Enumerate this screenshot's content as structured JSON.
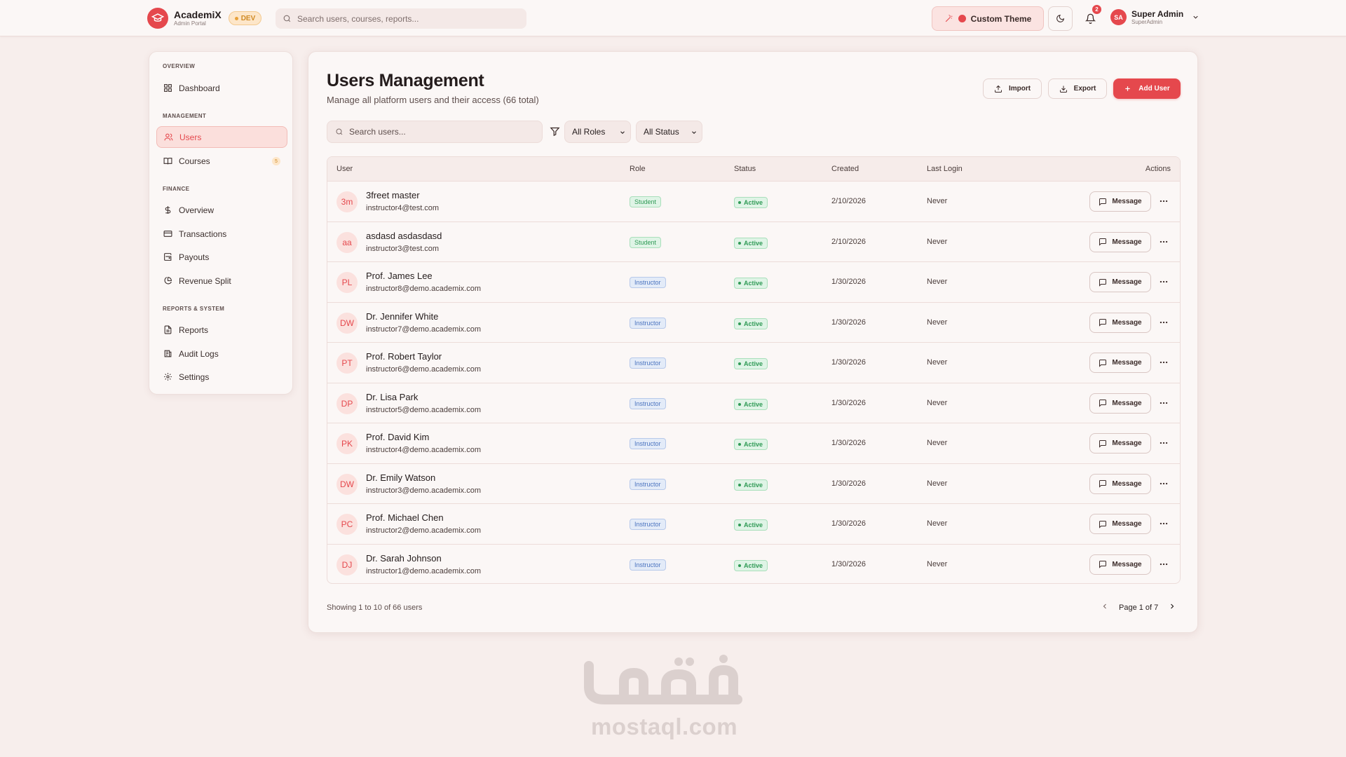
{
  "header": {
    "brand_name": "AcademiX",
    "brand_sub": "Admin Portal",
    "env_badge": "DEV",
    "search_placeholder": "Search users, courses, reports...",
    "theme_button": "Custom Theme",
    "notifications_count": "2",
    "user_initials": "SA",
    "user_name": "Super Admin",
    "user_role": "SuperAdmin"
  },
  "sidebar": {
    "sections": [
      {
        "title": "OVERVIEW",
        "items": [
          {
            "label": "Dashboard",
            "icon": "dashboard-icon"
          }
        ]
      },
      {
        "title": "MANAGEMENT",
        "items": [
          {
            "label": "Users",
            "icon": "users-icon",
            "active": true
          },
          {
            "label": "Courses",
            "icon": "book-icon",
            "badge": "5"
          }
        ]
      },
      {
        "title": "FINANCE",
        "items": [
          {
            "label": "Overview",
            "icon": "dollar-icon"
          },
          {
            "label": "Transactions",
            "icon": "card-icon"
          },
          {
            "label": "Payouts",
            "icon": "wallet-icon"
          },
          {
            "label": "Revenue Split",
            "icon": "pie-icon"
          }
        ]
      },
      {
        "title": "REPORTS & SYSTEM",
        "items": [
          {
            "label": "Reports",
            "icon": "file-icon"
          },
          {
            "label": "Audit Logs",
            "icon": "log-icon"
          },
          {
            "label": "Settings",
            "icon": "gear-icon"
          }
        ]
      }
    ]
  },
  "page": {
    "title": "Users Management",
    "subtitle": "Manage all platform users and their access (66 total)",
    "import_label": "Import",
    "export_label": "Export",
    "add_label": "Add User",
    "search_placeholder": "Search users...",
    "role_filter": "All Roles",
    "status_filter": "All Status"
  },
  "table": {
    "columns": [
      "User",
      "Role",
      "Status",
      "Created",
      "Last Login",
      "Actions"
    ],
    "message_label": "Message",
    "rows": [
      {
        "initials": "3m",
        "name": "3freet master",
        "email": "instructor4@test.com",
        "role": "Student",
        "status": "Active",
        "created": "2/10/2026",
        "last_login": "Never"
      },
      {
        "initials": "aa",
        "name": "asdasd asdasdasd",
        "email": "instructor3@test.com",
        "role": "Student",
        "status": "Active",
        "created": "2/10/2026",
        "last_login": "Never"
      },
      {
        "initials": "PL",
        "name": "Prof. James Lee",
        "email": "instructor8@demo.academix.com",
        "role": "Instructor",
        "status": "Active",
        "created": "1/30/2026",
        "last_login": "Never"
      },
      {
        "initials": "DW",
        "name": "Dr. Jennifer White",
        "email": "instructor7@demo.academix.com",
        "role": "Instructor",
        "status": "Active",
        "created": "1/30/2026",
        "last_login": "Never"
      },
      {
        "initials": "PT",
        "name": "Prof. Robert Taylor",
        "email": "instructor6@demo.academix.com",
        "role": "Instructor",
        "status": "Active",
        "created": "1/30/2026",
        "last_login": "Never"
      },
      {
        "initials": "DP",
        "name": "Dr. Lisa Park",
        "email": "instructor5@demo.academix.com",
        "role": "Instructor",
        "status": "Active",
        "created": "1/30/2026",
        "last_login": "Never"
      },
      {
        "initials": "PK",
        "name": "Prof. David Kim",
        "email": "instructor4@demo.academix.com",
        "role": "Instructor",
        "status": "Active",
        "created": "1/30/2026",
        "last_login": "Never"
      },
      {
        "initials": "DW",
        "name": "Dr. Emily Watson",
        "email": "instructor3@demo.academix.com",
        "role": "Instructor",
        "status": "Active",
        "created": "1/30/2026",
        "last_login": "Never"
      },
      {
        "initials": "PC",
        "name": "Prof. Michael Chen",
        "email": "instructor2@demo.academix.com",
        "role": "Instructor",
        "status": "Active",
        "created": "1/30/2026",
        "last_login": "Never"
      },
      {
        "initials": "DJ",
        "name": "Dr. Sarah Johnson",
        "email": "instructor1@demo.academix.com",
        "role": "Instructor",
        "status": "Active",
        "created": "1/30/2026",
        "last_login": "Never"
      }
    ]
  },
  "pagination": {
    "showing": "Showing 1 to 10 of 66 users",
    "page_label": "Page 1 of 7"
  },
  "watermark": {
    "arabic": "مستقل",
    "latin": "mostaql.com"
  },
  "colors": {
    "accent": "#e5484d",
    "background": "#f7eeec",
    "student": "#2f9a55",
    "instructor": "#4a73bf"
  }
}
